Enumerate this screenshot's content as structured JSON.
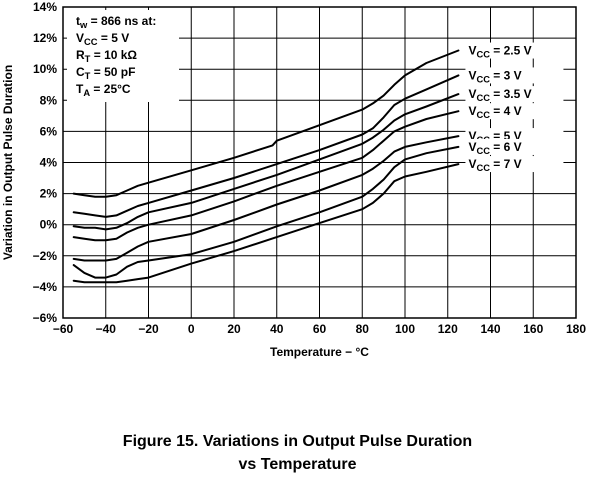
{
  "chart_data": {
    "type": "line",
    "title": "",
    "xlabel": "Temperature − °C",
    "ylabel": "Variation in Output Pulse Duration",
    "xlim": [
      -60,
      180
    ],
    "ylim": [
      -6,
      14
    ],
    "x_ticks": [
      "−60",
      "−40",
      "−20",
      "0",
      "20",
      "40",
      "60",
      "80",
      "100",
      "120",
      "140",
      "160",
      "180"
    ],
    "y_ticks": [
      "14%",
      "12%",
      "10%",
      "8%",
      "6%",
      "4%",
      "2%",
      "0%",
      "−2%",
      "−4%",
      "−6%"
    ],
    "grid": true,
    "legend": "series labels placed at right end of each curve",
    "conditions": [
      {
        "main": "t",
        "sub": "w",
        "rest": " = 866 ns at:"
      },
      {
        "main": "V",
        "sub": "CC",
        "rest": " = 5 V"
      },
      {
        "main": "R",
        "sub": "T",
        "rest": " = 10 kΩ"
      },
      {
        "main": "C",
        "sub": "T",
        "rest": " = 50 pF"
      },
      {
        "main": "T",
        "sub": "A",
        "rest": " = 25°C"
      }
    ],
    "series": [
      {
        "name": "VCC = 2.5 V",
        "label_main": "V",
        "label_sub": "CC",
        "label_rest": " = 2.5 V",
        "x": [
          -55,
          -50,
          -45,
          -40,
          -35,
          -30,
          -25,
          -20,
          0,
          20,
          38,
          40,
          60,
          80,
          85,
          90,
          95,
          100,
          110,
          125
        ],
        "y": [
          2.0,
          1.9,
          1.8,
          1.8,
          1.9,
          2.2,
          2.5,
          2.7,
          3.5,
          4.3,
          5.1,
          5.4,
          6.4,
          7.4,
          7.8,
          8.3,
          9.0,
          9.6,
          10.4,
          11.2
        ]
      },
      {
        "name": "VCC = 3 V",
        "label_main": "V",
        "label_sub": "CC",
        "label_rest": " = 3 V",
        "x": [
          -55,
          -50,
          -45,
          -40,
          -35,
          -30,
          -25,
          -20,
          0,
          20,
          40,
          60,
          80,
          85,
          90,
          95,
          100,
          110,
          125
        ],
        "y": [
          0.8,
          0.7,
          0.6,
          0.5,
          0.6,
          0.9,
          1.2,
          1.4,
          2.2,
          3.0,
          3.9,
          4.8,
          5.8,
          6.2,
          6.9,
          7.7,
          8.1,
          8.7,
          9.6
        ]
      },
      {
        "name": "VCC = 3.5 V",
        "label_main": "V",
        "label_sub": "CC",
        "label_rest": " = 3.5 V",
        "x": [
          -55,
          -50,
          -45,
          -40,
          -35,
          -30,
          -25,
          -20,
          0,
          20,
          40,
          60,
          80,
          85,
          90,
          95,
          100,
          110,
          125
        ],
        "y": [
          -0.1,
          -0.2,
          -0.2,
          -0.3,
          -0.2,
          0.1,
          0.5,
          0.8,
          1.4,
          2.3,
          3.2,
          4.2,
          5.2,
          5.6,
          6.1,
          6.7,
          7.1,
          7.6,
          8.4
        ]
      },
      {
        "name": "VCC = 4 V",
        "label_main": "V",
        "label_sub": "CC",
        "label_rest": " = 4 V",
        "x": [
          -55,
          -50,
          -45,
          -40,
          -35,
          -30,
          -25,
          -20,
          0,
          20,
          40,
          60,
          80,
          85,
          90,
          95,
          100,
          110,
          125
        ],
        "y": [
          -0.8,
          -0.9,
          -1.0,
          -1.0,
          -0.9,
          -0.5,
          -0.2,
          0.0,
          0.6,
          1.5,
          2.5,
          3.4,
          4.3,
          4.8,
          5.4,
          6.0,
          6.3,
          6.8,
          7.3
        ]
      },
      {
        "name": "VCC = 5 V",
        "label_main": "V",
        "label_sub": "CC",
        "label_rest": " = 5 V",
        "x": [
          -55,
          -50,
          -45,
          -40,
          -35,
          -30,
          -25,
          -20,
          0,
          20,
          40,
          60,
          80,
          85,
          90,
          95,
          100,
          110,
          125
        ],
        "y": [
          -2.2,
          -2.3,
          -2.3,
          -2.3,
          -2.2,
          -1.8,
          -1.4,
          -1.1,
          -0.6,
          0.3,
          1.3,
          2.2,
          3.2,
          3.6,
          4.1,
          4.7,
          5.0,
          5.3,
          5.7
        ]
      },
      {
        "name": "VCC = 6 V",
        "label_main": "V",
        "label_sub": "CC",
        "label_rest": " = 6 V",
        "x": [
          -55,
          -50,
          -45,
          -40,
          -35,
          -30,
          -25,
          -20,
          0,
          20,
          40,
          60,
          80,
          85,
          90,
          95,
          100,
          110,
          125
        ],
        "y": [
          -2.6,
          -3.1,
          -3.4,
          -3.4,
          -3.2,
          -2.7,
          -2.4,
          -2.3,
          -1.9,
          -1.1,
          -0.1,
          0.8,
          1.8,
          2.3,
          2.9,
          3.7,
          4.2,
          4.6,
          5.0
        ]
      },
      {
        "name": "VCC = 7 V",
        "label_main": "V",
        "label_sub": "CC",
        "label_rest": " = 7 V",
        "x": [
          -55,
          -50,
          -45,
          -40,
          -35,
          -30,
          -25,
          -20,
          0,
          20,
          40,
          60,
          80,
          85,
          90,
          95,
          100,
          110,
          125
        ],
        "y": [
          -3.6,
          -3.7,
          -3.7,
          -3.7,
          -3.7,
          -3.6,
          -3.5,
          -3.4,
          -2.5,
          -1.7,
          -0.8,
          0.1,
          1.0,
          1.4,
          2.0,
          2.8,
          3.1,
          3.4,
          3.9
        ]
      }
    ]
  },
  "caption": {
    "line1": "Figure 15. Variations in Output Pulse Duration",
    "line2": "vs Temperature"
  }
}
